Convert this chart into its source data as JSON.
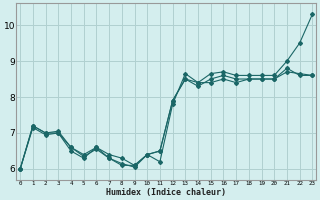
{
  "xlabel": "Humidex (Indice chaleur)",
  "bg_color": "#d4eeee",
  "grid_color": "#b0d0d0",
  "line_color": "#1a6666",
  "x_ticks": [
    0,
    1,
    2,
    3,
    4,
    5,
    6,
    7,
    8,
    9,
    10,
    11,
    12,
    13,
    14,
    15,
    16,
    17,
    18,
    19,
    20,
    21,
    22,
    23
  ],
  "y_ticks": [
    6,
    7,
    8,
    9,
    10
  ],
  "ylim": [
    5.7,
    10.6
  ],
  "xlim": [
    -0.3,
    23.3
  ],
  "series": [
    [
      6.0,
      7.2,
      7.0,
      7.0,
      6.6,
      6.4,
      6.6,
      6.4,
      6.3,
      6.1,
      6.4,
      6.2,
      7.8,
      8.65,
      8.4,
      8.65,
      8.7,
      8.6,
      8.6,
      8.6,
      8.6,
      9.0,
      9.5,
      10.3
    ],
    [
      6.0,
      7.2,
      7.0,
      7.05,
      6.6,
      6.35,
      6.55,
      6.3,
      6.15,
      6.05,
      6.4,
      6.5,
      7.9,
      8.5,
      8.4,
      8.4,
      8.5,
      8.4,
      8.5,
      8.5,
      8.5,
      8.7,
      8.65,
      8.6
    ],
    [
      6.0,
      7.15,
      6.95,
      7.0,
      6.5,
      6.3,
      6.6,
      6.3,
      6.1,
      6.1,
      6.4,
      6.5,
      7.9,
      8.5,
      8.3,
      8.5,
      8.6,
      8.5,
      8.5,
      8.5,
      8.5,
      8.8,
      8.6,
      8.6
    ]
  ]
}
